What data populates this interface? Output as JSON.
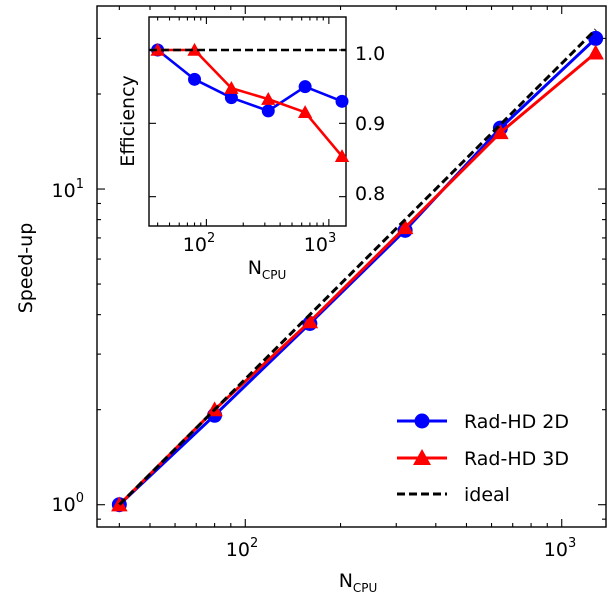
{
  "chart_data": [
    {
      "type": "line",
      "xscale": "log",
      "yscale": "log",
      "xlim": [
        34,
        1380
      ],
      "ylim": [
        0.85,
        38
      ],
      "xlabel": {
        "main": "N",
        "sub": "CPU"
      },
      "ylabel": "Speed-up",
      "xticks": [
        {
          "base": "10",
          "exp": "2",
          "value": 100
        },
        {
          "base": "10",
          "exp": "3",
          "value": 1000
        }
      ],
      "yticks": [
        {
          "base": "10",
          "exp": "0",
          "value": 1
        },
        {
          "base": "10",
          "exp": "1",
          "value": 10
        }
      ],
      "legend_position": "lower-right",
      "series": [
        {
          "name": "Rad-HD 2D",
          "color": "#0000ff",
          "marker": "circle",
          "x": [
            40,
            80,
            160,
            320,
            640,
            1280
          ],
          "y": [
            1.0,
            1.92,
            3.75,
            7.4,
            15.6,
            30.0
          ]
        },
        {
          "name": "Rad-HD 3D",
          "color": "#ff0000",
          "marker": "triangle",
          "x": [
            40,
            80,
            160,
            320,
            640,
            1280
          ],
          "y": [
            1.0,
            2.0,
            3.8,
            7.55,
            15.1,
            27.0
          ]
        },
        {
          "name": "ideal",
          "color": "#000000",
          "marker": "none",
          "dashed": true,
          "x": [
            40,
            1280
          ],
          "y": [
            1.0,
            32.0
          ]
        }
      ]
    },
    {
      "type": "line",
      "inset": true,
      "xscale": "log",
      "xlim": [
        34,
        1380
      ],
      "ylim": [
        0.76,
        1.045
      ],
      "xlabel": {
        "main": "N",
        "sub": "CPU"
      },
      "ylabel": "Efficiency",
      "xticks": [
        {
          "base": "10",
          "exp": "2",
          "value": 100
        },
        {
          "base": "10",
          "exp": "3",
          "value": 1000
        }
      ],
      "yticks": [
        {
          "label": "0.8",
          "value": 0.8
        },
        {
          "label": "0.9",
          "value": 0.9
        },
        {
          "label": "1.0",
          "value": 1.0
        }
      ],
      "series": [
        {
          "name": "Rad-HD 2D",
          "color": "#0000ff",
          "marker": "circle",
          "x": [
            40,
            80,
            160,
            320,
            640,
            1280
          ],
          "y": [
            1.0,
            0.96,
            0.935,
            0.917,
            0.95,
            0.93
          ]
        },
        {
          "name": "Rad-HD 3D",
          "color": "#ff0000",
          "marker": "triangle",
          "x": [
            40,
            80,
            160,
            320,
            640,
            1280
          ],
          "y": [
            1.0,
            1.0,
            0.948,
            0.933,
            0.915,
            0.855
          ]
        },
        {
          "name": "ideal",
          "color": "#000000",
          "marker": "none",
          "dashed": true,
          "x": [
            34,
            1380
          ],
          "y": [
            1.0,
            1.0
          ]
        }
      ]
    }
  ]
}
